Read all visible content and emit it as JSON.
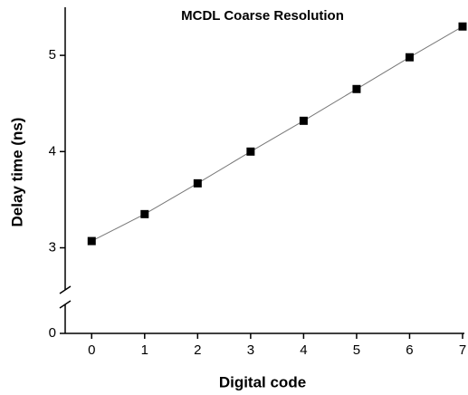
{
  "chart_data": {
    "type": "line",
    "title": "MCDL Coarse Resolution",
    "x_label": "Digital code",
    "y_label": "Delay time (ns)",
    "x": [
      0,
      1,
      2,
      3,
      4,
      5,
      6,
      7
    ],
    "series": [
      {
        "name": "Delay",
        "color": "#000000",
        "values": [
          3.07,
          3.35,
          3.67,
          4.0,
          4.32,
          4.65,
          4.98,
          5.3
        ]
      }
    ],
    "line_color": "#777777",
    "marker": "square",
    "xlim": [
      -0.5,
      7
    ],
    "xticks": [
      0,
      1,
      2,
      3,
      4,
      5,
      6,
      7
    ],
    "ylim": [
      0,
      5.5
    ],
    "yticks": [
      0,
      3,
      4,
      5
    ],
    "y_break": [
      0.3,
      2.6
    ],
    "grid": false
  }
}
